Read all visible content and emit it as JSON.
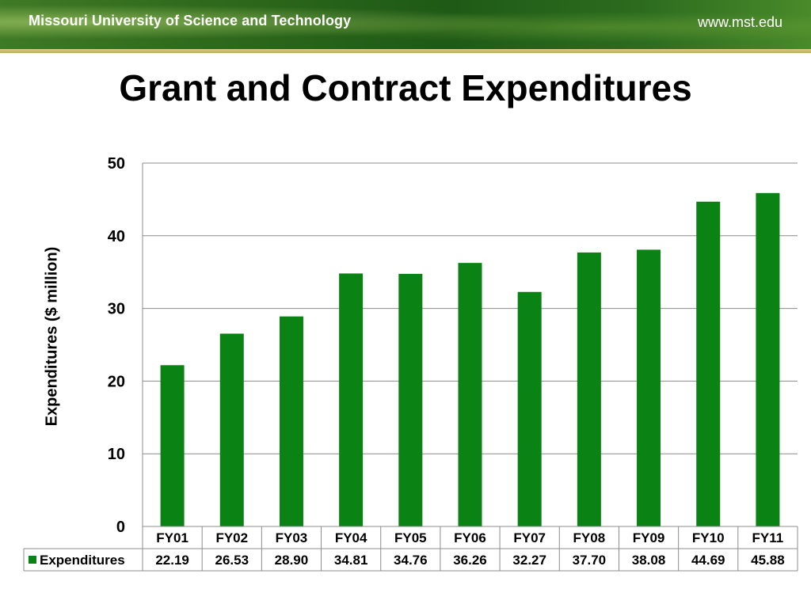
{
  "header": {
    "university": "Missouri University of Science and Technology",
    "url": "www.mst.edu"
  },
  "slide": {
    "title": "Grant and Contract Expenditures"
  },
  "colors": {
    "bar": "#0b8214",
    "grid": "#8c8c8c"
  },
  "chart_data": {
    "type": "bar",
    "title": "",
    "xlabel": "",
    "ylabel": "Expenditures ($ million)",
    "ylim": [
      0,
      50
    ],
    "yticks": [
      0,
      10,
      20,
      30,
      40,
      50
    ],
    "grid": true,
    "legend": "data-table",
    "categories": [
      "FY01",
      "FY02",
      "FY03",
      "FY04",
      "FY05",
      "FY06",
      "FY07",
      "FY08",
      "FY09",
      "FY10",
      "FY11"
    ],
    "series": [
      {
        "name": "Expenditures",
        "values": [
          22.19,
          26.53,
          28.9,
          34.81,
          34.76,
          36.26,
          32.27,
          37.7,
          38.08,
          44.69,
          45.88
        ],
        "labels": [
          "22.19",
          "26.53",
          "28.90",
          "34.81",
          "34.76",
          "36.26",
          "32.27",
          "37.70",
          "38.08",
          "44.69",
          "45.88"
        ]
      }
    ]
  }
}
